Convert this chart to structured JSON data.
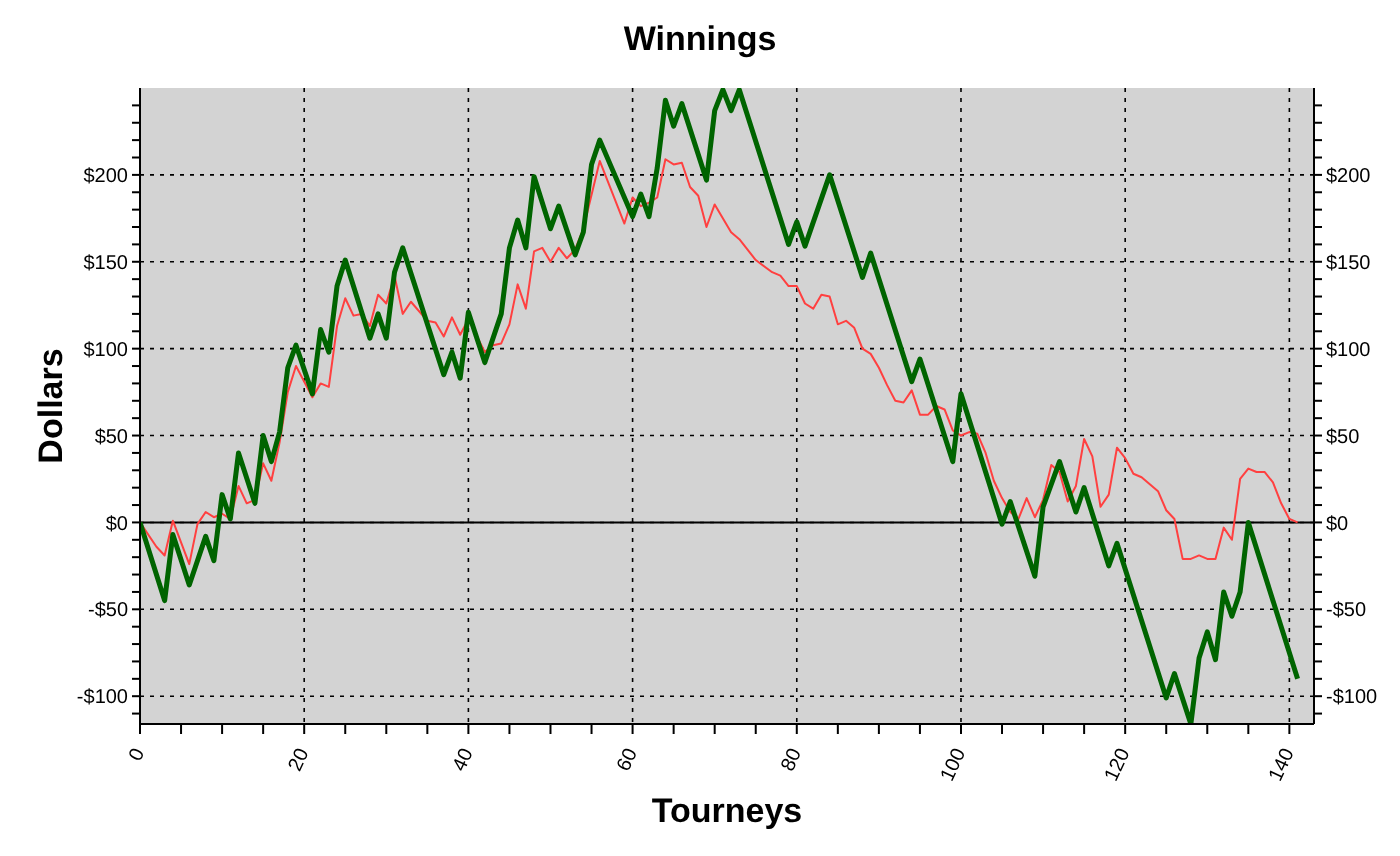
{
  "chart_data": {
    "type": "line",
    "title": "Winnings",
    "xlabel": "Tourneys",
    "ylabel": "Dollars",
    "xlim": [
      0,
      143
    ],
    "xticks": [
      0,
      {
        "value": 5,
        "label": null
      },
      {
        "value": 10,
        "label": null
      },
      {
        "value": 15,
        "label": null
      },
      20,
      {
        "value": 25,
        "label": null
      },
      {
        "value": 30,
        "label": null
      },
      {
        "value": 35,
        "label": null
      },
      40,
      {
        "value": 45,
        "label": null
      },
      {
        "value": 50,
        "label": null
      },
      {
        "value": 55,
        "label": null
      },
      60,
      {
        "value": 65,
        "label": null
      },
      {
        "value": 70,
        "label": null
      },
      {
        "value": 75,
        "label": null
      },
      80,
      {
        "value": 85,
        "label": null
      },
      {
        "value": 90,
        "label": null
      },
      {
        "value": 95,
        "label": null
      },
      100,
      {
        "value": 105,
        "label": null
      },
      {
        "value": 110,
        "label": null
      },
      {
        "value": 115,
        "label": null
      },
      120,
      {
        "value": 125,
        "label": null
      },
      {
        "value": 130,
        "label": null
      },
      {
        "value": 135,
        "label": null
      },
      140
    ],
    "ylim": [
      -116,
      250
    ],
    "yticks": [
      {
        "value": -110,
        "label": null
      },
      {
        "value": -100,
        "label": "-$100"
      },
      {
        "value": -90,
        "label": null
      },
      {
        "value": -80,
        "label": null
      },
      {
        "value": -70,
        "label": null
      },
      {
        "value": -60,
        "label": null
      },
      {
        "value": -50,
        "label": "-$50"
      },
      {
        "value": -40,
        "label": null
      },
      {
        "value": -30,
        "label": null
      },
      {
        "value": -20,
        "label": null
      },
      {
        "value": -10,
        "label": null
      },
      {
        "value": 0,
        "label": "$0"
      },
      {
        "value": 10,
        "label": null
      },
      {
        "value": 20,
        "label": null
      },
      {
        "value": 30,
        "label": null
      },
      {
        "value": 40,
        "label": null
      },
      {
        "value": 50,
        "label": "$50"
      },
      {
        "value": 60,
        "label": null
      },
      {
        "value": 70,
        "label": null
      },
      {
        "value": 80,
        "label": null
      },
      {
        "value": 90,
        "label": null
      },
      {
        "value": 100,
        "label": "$100"
      },
      {
        "value": 110,
        "label": null
      },
      {
        "value": 120,
        "label": null
      },
      {
        "value": 130,
        "label": null
      },
      {
        "value": 140,
        "label": null
      },
      {
        "value": 150,
        "label": "$150"
      },
      {
        "value": 160,
        "label": null
      },
      {
        "value": 170,
        "label": null
      },
      {
        "value": 180,
        "label": null
      },
      {
        "value": 190,
        "label": null
      },
      {
        "value": 200,
        "label": "$200"
      },
      {
        "value": 210,
        "label": null
      },
      {
        "value": 220,
        "label": null
      },
      {
        "value": 230,
        "label": null
      },
      {
        "value": 240,
        "label": null
      }
    ],
    "y2lim": [
      -116,
      250
    ],
    "y2ticks": [
      {
        "value": -110,
        "label": null
      },
      {
        "value": -100,
        "label": "-$100"
      },
      {
        "value": -90,
        "label": null
      },
      {
        "value": -80,
        "label": null
      },
      {
        "value": -70,
        "label": null
      },
      {
        "value": -60,
        "label": null
      },
      {
        "value": -50,
        "label": "-$50"
      },
      {
        "value": -40,
        "label": null
      },
      {
        "value": -30,
        "label": null
      },
      {
        "value": -20,
        "label": null
      },
      {
        "value": -10,
        "label": null
      },
      {
        "value": 0,
        "label": "$0"
      },
      {
        "value": 10,
        "label": null
      },
      {
        "value": 20,
        "label": null
      },
      {
        "value": 30,
        "label": null
      },
      {
        "value": 40,
        "label": null
      },
      {
        "value": 50,
        "label": "$50"
      },
      {
        "value": 60,
        "label": null
      },
      {
        "value": 70,
        "label": null
      },
      {
        "value": 80,
        "label": null
      },
      {
        "value": 90,
        "label": null
      },
      {
        "value": 100,
        "label": "$100"
      },
      {
        "value": 110,
        "label": null
      },
      {
        "value": 120,
        "label": null
      },
      {
        "value": 130,
        "label": null
      },
      {
        "value": 140,
        "label": null
      },
      {
        "value": 150,
        "label": "$150"
      },
      {
        "value": 160,
        "label": null
      },
      {
        "value": 170,
        "label": null
      },
      {
        "value": 180,
        "label": null
      },
      {
        "value": 190,
        "label": null
      },
      {
        "value": 200,
        "label": "$200"
      },
      {
        "value": 210,
        "label": null
      },
      {
        "value": 220,
        "label": null
      },
      {
        "value": 230,
        "label": null
      },
      {
        "value": 240,
        "label": null
      }
    ],
    "grid": true,
    "marker": "none",
    "line_style": "solid",
    "ref_lines": [
      {
        "axis": "y",
        "value": 0,
        "color": "#000000",
        "line_style": "solid"
      }
    ],
    "series": [
      {
        "color": "#ff4040",
        "x": [
          0,
          2,
          3,
          4,
          6,
          7,
          8,
          9,
          10,
          11,
          12,
          13,
          14,
          15,
          16,
          17,
          18,
          19,
          21,
          22,
          23,
          24,
          25,
          26,
          27,
          28,
          29,
          30,
          31,
          32,
          33,
          35,
          36,
          37,
          38,
          39,
          40,
          42,
          43,
          44,
          45,
          46,
          47,
          48,
          49,
          50,
          51,
          52,
          53,
          54,
          56,
          59,
          60,
          61,
          62,
          63,
          64,
          65,
          66,
          67,
          68,
          69,
          70,
          72,
          73,
          75,
          77,
          78,
          79,
          80,
          81,
          82,
          83,
          84,
          85,
          86,
          87,
          88,
          89,
          90,
          91,
          92,
          93,
          94,
          95,
          96,
          97,
          98,
          99,
          100,
          101,
          102,
          103,
          104,
          105,
          106,
          107,
          108,
          109,
          110,
          111,
          112,
          113,
          114,
          115,
          116,
          117,
          118,
          119,
          120,
          121,
          122,
          124,
          125,
          126,
          127,
          128,
          129,
          130,
          131,
          132,
          133,
          134,
          135,
          136,
          137,
          138,
          139,
          140,
          141
        ],
        "values": [
          0,
          -14,
          -19,
          1,
          -24,
          -1,
          6,
          3,
          5,
          2,
          21,
          11,
          13,
          34,
          24,
          46,
          75,
          90,
          72,
          80,
          78,
          113,
          129,
          119,
          120,
          113,
          131,
          126,
          142,
          120,
          127,
          116,
          115,
          107,
          118,
          108,
          117,
          98,
          102,
          103,
          114,
          137,
          123,
          156,
          158,
          150,
          158,
          152,
          157,
          169,
          208,
          172,
          187,
          182,
          184,
          187,
          209,
          206,
          207,
          193,
          188,
          170,
          183,
          167,
          163,
          151,
          144,
          142,
          136,
          136,
          126,
          123,
          131,
          130,
          114,
          116,
          112,
          100,
          97,
          89,
          79,
          70,
          69,
          76,
          62,
          62,
          67,
          65,
          53,
          50,
          52,
          51,
          40,
          24,
          14,
          6,
          2,
          14,
          3,
          13,
          33,
          29,
          12,
          21,
          48,
          38,
          9,
          16,
          43,
          37,
          28,
          26,
          18,
          7,
          2,
          -21,
          -21,
          -19,
          -21,
          -21,
          -3,
          -10,
          25,
          31,
          29,
          29,
          23,
          11,
          2,
          0
        ]
      },
      {
        "color": "#006400",
        "x": [
          0,
          3,
          4,
          6,
          8,
          9,
          10,
          11,
          12,
          14,
          15,
          16,
          17,
          18,
          19,
          21,
          22,
          23,
          24,
          25,
          28,
          29,
          30,
          31,
          32,
          37,
          38,
          39,
          40,
          42,
          44,
          45,
          46,
          47,
          48,
          50,
          51,
          53,
          54,
          55,
          56,
          60,
          61,
          62,
          63,
          64,
          65,
          66,
          69,
          70,
          71,
          72,
          73,
          79,
          80,
          81,
          84,
          88,
          89,
          94,
          95,
          99,
          100,
          105,
          106,
          109,
          110,
          112,
          114,
          115,
          118,
          119,
          125,
          126,
          128,
          129,
          130,
          131,
          132,
          133,
          134,
          135,
          141
        ],
        "values": [
          0,
          -45,
          -7,
          -36,
          -8,
          -22,
          16,
          2,
          40,
          11,
          50,
          35,
          52,
          89,
          102,
          74,
          111,
          98,
          136,
          151,
          106,
          120,
          106,
          144,
          158,
          85,
          98,
          83,
          121,
          92,
          120,
          158,
          174,
          158,
          199,
          169,
          182,
          154,
          167,
          206,
          220,
          176,
          189,
          176,
          204,
          243,
          228,
          241,
          197,
          237,
          249,
          237,
          249,
          160,
          173,
          159,
          200,
          141,
          155,
          81,
          94,
          35,
          74,
          -1,
          12,
          -31,
          9,
          35,
          6,
          20,
          -25,
          -12,
          -101,
          -87,
          -116,
          -78,
          -63,
          -79,
          -40,
          -54,
          -40,
          0,
          -90
        ]
      }
    ]
  }
}
